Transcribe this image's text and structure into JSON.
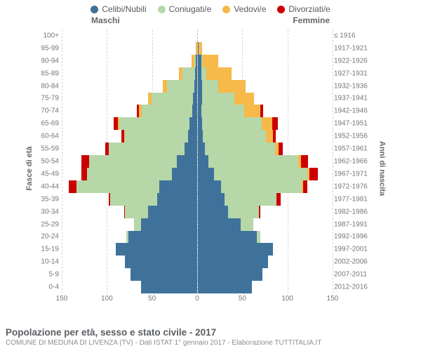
{
  "legend": {
    "items": [
      {
        "key": "celibi",
        "label": "Celibi/Nubili"
      },
      {
        "key": "coniug",
        "label": "Coniugati/e"
      },
      {
        "key": "vedovi",
        "label": "Vedovi/e"
      },
      {
        "key": "divorz",
        "label": "Divorziati/e"
      }
    ]
  },
  "colors": {
    "celibi": "#3f729b",
    "coniug": "#b6d7a8",
    "vedovi": "#f6b94a",
    "divorz": "#cc0000",
    "grid": "#d5d5d5",
    "center_line": "#bbbbbb",
    "background": "#ffffff",
    "text": "#555a5e",
    "tick_text": "#777777"
  },
  "labels": {
    "male": "Maschi",
    "female": "Femmine",
    "y_left": "Fasce di età",
    "y_right": "Anni di nascita"
  },
  "axis": {
    "max": 150,
    "ticks": [
      150,
      100,
      50,
      0,
      50,
      100,
      150
    ]
  },
  "footer": {
    "title": "Popolazione per età, sesso e stato civile - 2017",
    "subtitle": "COMUNE DI MEDUNA DI LIVENZA (TV) - Dati ISTAT 1° gennaio 2017 - Elaborazione TUTTITALIA.IT"
  },
  "rows": [
    {
      "age": "100+",
      "birth": "≤ 1916",
      "m": {
        "celibi": 0,
        "coniug": 0,
        "vedovi": 0,
        "divorz": 0
      },
      "f": {
        "celibi": 0,
        "coniug": 0,
        "vedovi": 0,
        "divorz": 0
      }
    },
    {
      "age": "95-99",
      "birth": "1917-1921",
      "m": {
        "celibi": 0,
        "coniug": 0,
        "vedovi": 1,
        "divorz": 0
      },
      "f": {
        "celibi": 1,
        "coniug": 0,
        "vedovi": 4,
        "divorz": 0
      }
    },
    {
      "age": "90-94",
      "birth": "1922-1926",
      "m": {
        "celibi": 1,
        "coniug": 2,
        "vedovi": 3,
        "divorz": 0
      },
      "f": {
        "celibi": 4,
        "coniug": 1,
        "vedovi": 18,
        "divorz": 0
      }
    },
    {
      "age": "85-89",
      "birth": "1927-1931",
      "m": {
        "celibi": 2,
        "coniug": 14,
        "vedovi": 4,
        "divorz": 0
      },
      "f": {
        "celibi": 4,
        "coniug": 6,
        "vedovi": 28,
        "divorz": 0
      }
    },
    {
      "age": "80-84",
      "birth": "1932-1936",
      "m": {
        "celibi": 3,
        "coniug": 30,
        "vedovi": 5,
        "divorz": 0
      },
      "f": {
        "celibi": 5,
        "coniug": 18,
        "vedovi": 30,
        "divorz": 0
      }
    },
    {
      "age": "75-79",
      "birth": "1937-1941",
      "m": {
        "celibi": 4,
        "coniug": 46,
        "vedovi": 4,
        "divorz": 0
      },
      "f": {
        "celibi": 5,
        "coniug": 36,
        "vedovi": 22,
        "divorz": 0
      }
    },
    {
      "age": "70-74",
      "birth": "1942-1946",
      "m": {
        "celibi": 5,
        "coniug": 56,
        "vedovi": 3,
        "divorz": 3
      },
      "f": {
        "celibi": 4,
        "coniug": 48,
        "vedovi": 18,
        "divorz": 3
      }
    },
    {
      "age": "65-69",
      "birth": "1947-1951",
      "m": {
        "celibi": 8,
        "coniug": 78,
        "vedovi": 2,
        "divorz": 4
      },
      "f": {
        "celibi": 5,
        "coniug": 66,
        "vedovi": 12,
        "divorz": 6
      }
    },
    {
      "age": "60-64",
      "birth": "1952-1956",
      "m": {
        "celibi": 10,
        "coniug": 70,
        "vedovi": 1,
        "divorz": 3
      },
      "f": {
        "celibi": 6,
        "coniug": 70,
        "vedovi": 8,
        "divorz": 3
      }
    },
    {
      "age": "55-59",
      "birth": "1957-1961",
      "m": {
        "celibi": 14,
        "coniug": 84,
        "vedovi": 0,
        "divorz": 4
      },
      "f": {
        "celibi": 8,
        "coniug": 78,
        "vedovi": 4,
        "divorz": 5
      }
    },
    {
      "age": "50-54",
      "birth": "1962-1966",
      "m": {
        "celibi": 22,
        "coniug": 98,
        "vedovi": 0,
        "divorz": 8
      },
      "f": {
        "celibi": 12,
        "coniug": 100,
        "vedovi": 3,
        "divorz": 8
      }
    },
    {
      "age": "45-49",
      "birth": "1967-1971",
      "m": {
        "celibi": 28,
        "coniug": 94,
        "vedovi": 0,
        "divorz": 6
      },
      "f": {
        "celibi": 18,
        "coniug": 104,
        "vedovi": 2,
        "divorz": 10
      }
    },
    {
      "age": "40-44",
      "birth": "1972-1976",
      "m": {
        "celibi": 42,
        "coniug": 92,
        "vedovi": 0,
        "divorz": 8
      },
      "f": {
        "celibi": 26,
        "coniug": 90,
        "vedovi": 1,
        "divorz": 5
      }
    },
    {
      "age": "35-39",
      "birth": "1977-1981",
      "m": {
        "celibi": 44,
        "coniug": 52,
        "vedovi": 0,
        "divorz": 2
      },
      "f": {
        "celibi": 30,
        "coniug": 58,
        "vedovi": 0,
        "divorz": 4
      }
    },
    {
      "age": "30-34",
      "birth": "1982-1986",
      "m": {
        "celibi": 54,
        "coniug": 26,
        "vedovi": 0,
        "divorz": 1
      },
      "f": {
        "celibi": 34,
        "coniug": 34,
        "vedovi": 0,
        "divorz": 2
      }
    },
    {
      "age": "25-29",
      "birth": "1987-1991",
      "m": {
        "celibi": 62,
        "coniug": 8,
        "vedovi": 0,
        "divorz": 0
      },
      "f": {
        "celibi": 48,
        "coniug": 14,
        "vedovi": 0,
        "divorz": 0
      }
    },
    {
      "age": "20-24",
      "birth": "1992-1996",
      "m": {
        "celibi": 76,
        "coniug": 2,
        "vedovi": 0,
        "divorz": 0
      },
      "f": {
        "celibi": 66,
        "coniug": 4,
        "vedovi": 0,
        "divorz": 0
      }
    },
    {
      "age": "15-19",
      "birth": "1997-2001",
      "m": {
        "celibi": 90,
        "coniug": 0,
        "vedovi": 0,
        "divorz": 0
      },
      "f": {
        "celibi": 84,
        "coniug": 0,
        "vedovi": 0,
        "divorz": 0
      }
    },
    {
      "age": "10-14",
      "birth": "2002-2006",
      "m": {
        "celibi": 80,
        "coniug": 0,
        "vedovi": 0,
        "divorz": 0
      },
      "f": {
        "celibi": 78,
        "coniug": 0,
        "vedovi": 0,
        "divorz": 0
      }
    },
    {
      "age": "5-9",
      "birth": "2007-2011",
      "m": {
        "celibi": 74,
        "coniug": 0,
        "vedovi": 0,
        "divorz": 0
      },
      "f": {
        "celibi": 72,
        "coniug": 0,
        "vedovi": 0,
        "divorz": 0
      }
    },
    {
      "age": "0-4",
      "birth": "2012-2016",
      "m": {
        "celibi": 62,
        "coniug": 0,
        "vedovi": 0,
        "divorz": 0
      },
      "f": {
        "celibi": 60,
        "coniug": 0,
        "vedovi": 0,
        "divorz": 0
      }
    }
  ]
}
